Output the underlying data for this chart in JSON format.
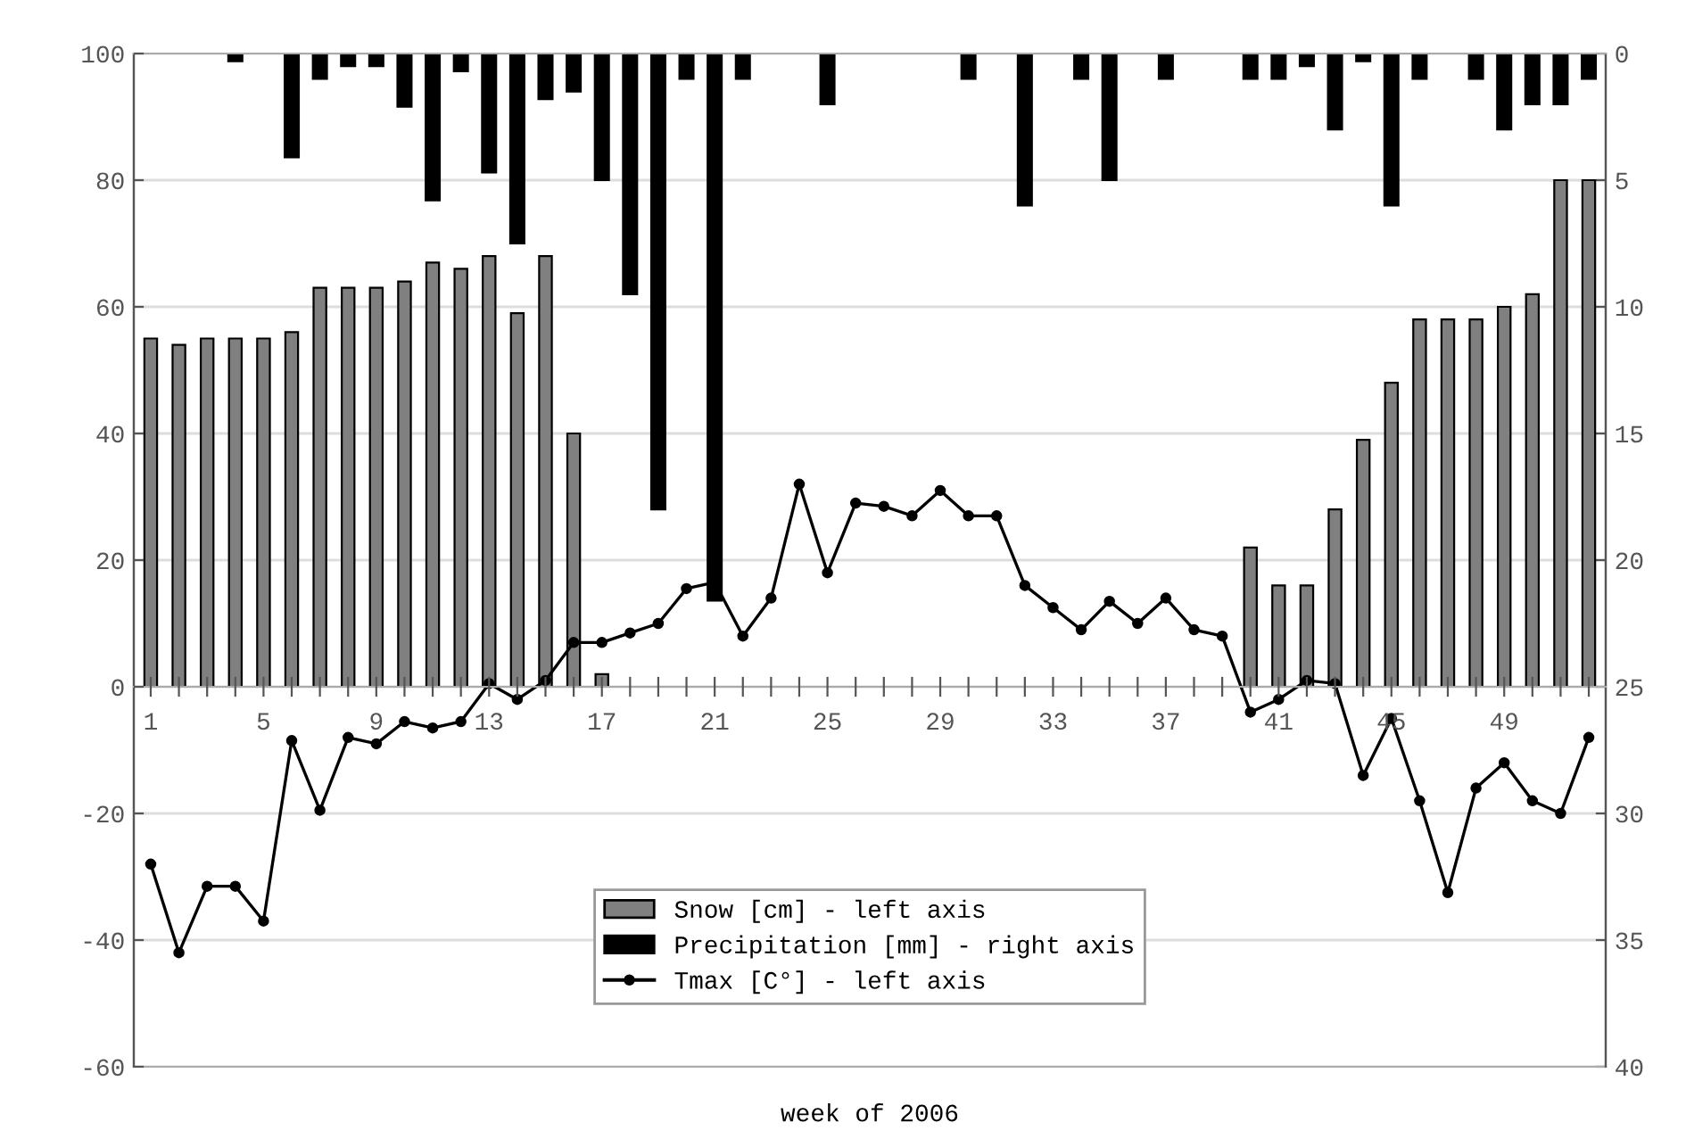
{
  "chart_data": {
    "type": "bar",
    "xlabel": "week of 2006",
    "categories": [
      "1",
      null,
      null,
      null,
      "5",
      null,
      null,
      null,
      "9",
      null,
      null,
      null,
      "13",
      null,
      null,
      null,
      "17",
      null,
      null,
      null,
      "21",
      null,
      null,
      null,
      "25",
      null,
      null,
      null,
      "29",
      null,
      null,
      null,
      "33",
      null,
      null,
      null,
      "37",
      null,
      null,
      null,
      "41",
      null,
      null,
      null,
      "45",
      null,
      null,
      null,
      "49",
      null,
      null,
      null
    ],
    "series": [
      {
        "name": "Snow [cm] - left axis",
        "color": "#808080",
        "values": [
          55,
          54,
          55,
          55,
          55,
          56,
          63,
          63,
          63,
          64,
          67,
          66,
          68,
          59,
          68,
          40,
          2,
          null,
          null,
          null,
          null,
          null,
          null,
          null,
          null,
          null,
          null,
          null,
          null,
          null,
          null,
          null,
          null,
          null,
          null,
          null,
          null,
          null,
          null,
          22,
          16,
          16,
          28,
          39,
          48,
          58,
          58,
          58,
          60,
          62,
          80,
          80
        ]
      },
      {
        "name": "Precipitation [mm] - right axis",
        "type": "bar",
        "axis": "y2",
        "color": "#000000",
        "values": [
          null,
          null,
          null,
          0.3,
          null,
          4.1,
          1.0,
          0.5,
          0.5,
          2.1,
          5.8,
          0.7,
          4.7,
          7.5,
          1.8,
          1.5,
          5.0,
          9.5,
          18.0,
          1.0,
          21.6,
          1.0,
          null,
          null,
          2.0,
          null,
          null,
          null,
          null,
          1.0,
          null,
          6.0,
          null,
          1.0,
          5.0,
          null,
          1.0,
          null,
          null,
          1.0,
          1.0,
          0.5,
          3.0,
          0.3,
          6.0,
          1.0,
          null,
          1.0,
          3.0,
          2.0,
          2.0,
          1.0
        ]
      },
      {
        "name": "Tmax [C°] - left axis",
        "type": "line",
        "color": "#000000",
        "marker": "circle",
        "values": [
          -28,
          -42,
          -31.5,
          -31.5,
          -37,
          -8.5,
          -19.5,
          -8,
          -9,
          -5.5,
          -6.5,
          -5.5,
          0.5,
          -2,
          1,
          7,
          7,
          8.5,
          10,
          15.5,
          16.5,
          8,
          14,
          32,
          18,
          29,
          28.5,
          27,
          31,
          27,
          27,
          16,
          12.5,
          9,
          13.5,
          10,
          14,
          9,
          8,
          -4,
          -2,
          1,
          0.5,
          -14,
          -5,
          -18,
          -32.5,
          -16,
          -12,
          -18,
          -20,
          -8
        ]
      }
    ],
    "ylim": [
      -60,
      100
    ],
    "yticks": [
      -60,
      -40,
      -20,
      0,
      20,
      40,
      60,
      80,
      100
    ],
    "y2lim": [
      40,
      0
    ],
    "y2ticks": [
      0,
      5,
      10,
      15,
      20,
      25,
      30,
      35,
      40
    ],
    "grid": "y",
    "legend": "bottom"
  }
}
